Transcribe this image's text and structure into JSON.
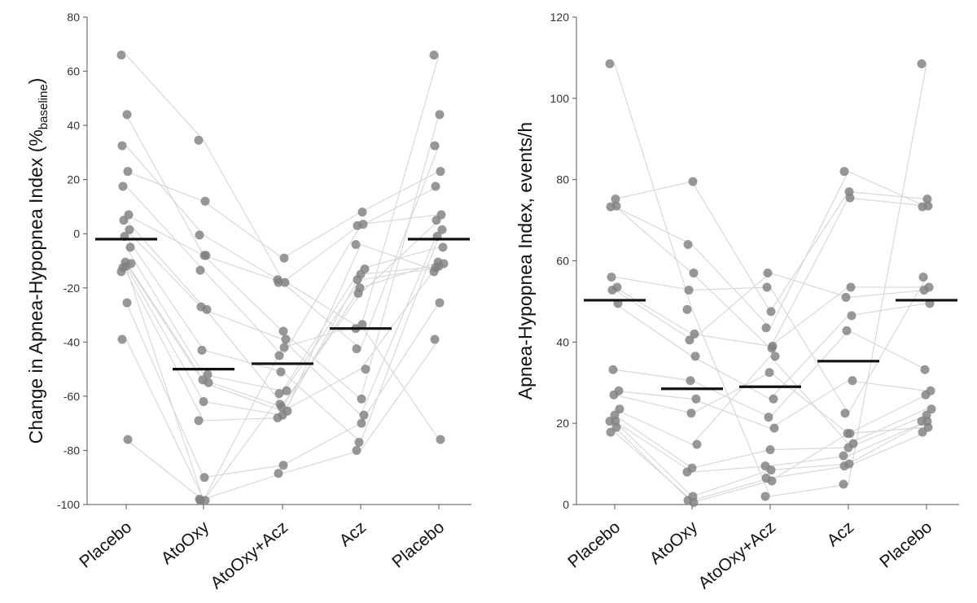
{
  "chart_data": [
    {
      "type": "scatter",
      "ylabel": "Change in Apnea-Hypopnea Index (%",
      "ylabel_sub": "baseline",
      "ylabel_close": ")",
      "categories": [
        "Placebo",
        "AtoOxy",
        "AtoOxy+Acz",
        "Acz",
        "Placebo"
      ],
      "ylim": [
        -100,
        80
      ],
      "yticks": [
        80,
        60,
        40,
        20,
        0,
        -20,
        -40,
        -60,
        -80,
        -100
      ],
      "grid": false,
      "means": [
        -2,
        -50,
        -48,
        -35,
        -2
      ],
      "series": [
        {
          "values": [
            66,
            34.5,
            -17,
            -35,
            66
          ]
        },
        {
          "values": [
            44,
            -8,
            -36,
            -61,
            44
          ]
        },
        {
          "values": [
            32.5,
            -0.5,
            -18,
            -42.5,
            32.5
          ]
        },
        {
          "values": [
            23,
            12,
            -9,
            8,
            23
          ]
        },
        {
          "values": [
            17.5,
            -13.5,
            -45,
            3,
            17.5
          ]
        },
        {
          "values": [
            7,
            -8,
            -18,
            3.5,
            7
          ]
        },
        {
          "values": [
            5,
            -27,
            -63,
            -22,
            5
          ]
        },
        {
          "values": [
            1.5,
            -28,
            -39,
            -67,
            1.5
          ]
        },
        {
          "values": [
            -1,
            -43,
            -51,
            -77,
            -1
          ]
        },
        {
          "values": [
            -5,
            -52,
            -58,
            -13,
            -5
          ]
        },
        {
          "values": [
            -10.5,
            -54,
            -64,
            -20,
            -10.5
          ]
        },
        {
          "values": [
            -11,
            -55,
            -65.5,
            -50,
            -11
          ]
        },
        {
          "values": [
            -12,
            -62,
            -67,
            -15,
            -12
          ]
        },
        {
          "values": [
            -14,
            -69,
            -68,
            -4,
            -14
          ]
        },
        {
          "values": [
            -25.5,
            -90,
            -85.5,
            -70,
            -25.5
          ]
        },
        {
          "values": [
            -39,
            -98,
            -88.5,
            -80,
            -39
          ]
        },
        {
          "values": [
            -76,
            -98.5,
            -42,
            -33.5,
            -76
          ]
        },
        {
          "values": [
            -12.5,
            -98.5,
            -59,
            -17,
            -12.5
          ]
        }
      ]
    },
    {
      "type": "scatter",
      "ylabel": "Apnea-Hypopnea Index, events/h",
      "categories": [
        "Placebo",
        "AtoOxy",
        "AtoOxy+Acz",
        "Acz",
        "Placebo"
      ],
      "ylim": [
        0,
        120
      ],
      "yticks": [
        120,
        100,
        80,
        60,
        40,
        20,
        0
      ],
      "grid": false,
      "means": [
        50.3,
        28.5,
        29,
        35.3,
        50.3
      ],
      "series": [
        {
          "values": [
            108.5,
            48,
            2,
            5,
            108.5
          ]
        },
        {
          "values": [
            75.2,
            79.5,
            47.5,
            77,
            75.2
          ]
        },
        {
          "values": [
            73.3,
            64,
            43.5,
            82,
            73.3
          ]
        },
        {
          "values": [
            73.5,
            57,
            38.5,
            75.5,
            73.5
          ]
        },
        {
          "values": [
            56,
            52.8,
            53.5,
            22.5,
            56
          ]
        },
        {
          "values": [
            53.5,
            42,
            39,
            53.5,
            53.5
          ]
        },
        {
          "values": [
            52.8,
            40.5,
            57,
            51,
            52.8
          ]
        },
        {
          "values": [
            49.5,
            36.5,
            26,
            46.5,
            49.5
          ]
        },
        {
          "values": [
            33.2,
            30.5,
            21.5,
            42.8,
            33.2
          ]
        },
        {
          "values": [
            28,
            26,
            18.8,
            30.5,
            28
          ]
        },
        {
          "values": [
            27,
            22.5,
            32.5,
            17.5,
            27
          ]
        },
        {
          "values": [
            23.5,
            14.8,
            36.5,
            15,
            23.5
          ]
        },
        {
          "values": [
            22,
            9,
            13.5,
            14,
            22
          ]
        },
        {
          "values": [
            20.5,
            8,
            9.5,
            12,
            20.5
          ]
        },
        {
          "values": [
            20.5,
            2,
            8.5,
            10,
            20.5
          ]
        },
        {
          "values": [
            17.8,
            1,
            6.5,
            9.5,
            17.8
          ]
        },
        {
          "values": [
            19,
            0.5,
            5.8,
            17.5,
            19
          ]
        }
      ]
    }
  ]
}
